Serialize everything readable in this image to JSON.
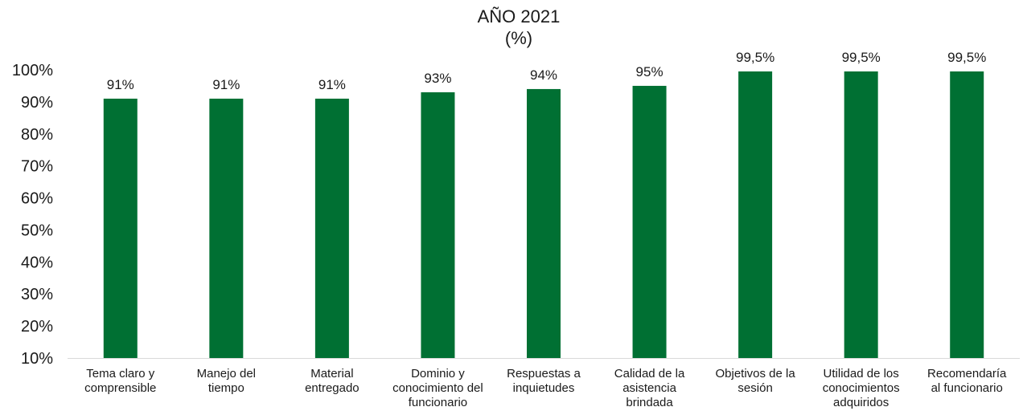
{
  "chart_data": {
    "type": "bar",
    "title": "AÑO 2021",
    "subtitle": "(%)",
    "categories": [
      [
        "Tema claro y",
        "comprensible"
      ],
      [
        "Manejo del",
        "tiempo"
      ],
      [
        "Material",
        "entregado"
      ],
      [
        "Dominio y",
        "conocimiento del",
        "funcionario"
      ],
      [
        "Respuestas a",
        "inquietudes"
      ],
      [
        "Calidad de la",
        "asistencia",
        "brindada"
      ],
      [
        "Objetivos de la",
        "sesión"
      ],
      [
        "Utilidad de los",
        "conocimientos",
        "adquiridos"
      ],
      [
        "Recomendaría",
        "al funcionario"
      ]
    ],
    "values": [
      91,
      91,
      91,
      93,
      94,
      95,
      99.5,
      99.5,
      99.5
    ],
    "data_labels": [
      "91%",
      "91%",
      "91%",
      "93%",
      "94%",
      "95%",
      "99,5%",
      "99,5%",
      "99,5%"
    ],
    "ylim": [
      10,
      100
    ],
    "yticks": [
      10,
      20,
      30,
      40,
      50,
      60,
      70,
      80,
      90,
      100
    ],
    "ytick_labels": [
      "10%",
      "20%",
      "30%",
      "40%",
      "50%",
      "60%",
      "70%",
      "80%",
      "90%",
      "100%"
    ],
    "xlabel": "",
    "ylabel": "",
    "grid": false,
    "legend": "none",
    "bar_color": "#007033",
    "axis_color": "#d9d9d9"
  }
}
